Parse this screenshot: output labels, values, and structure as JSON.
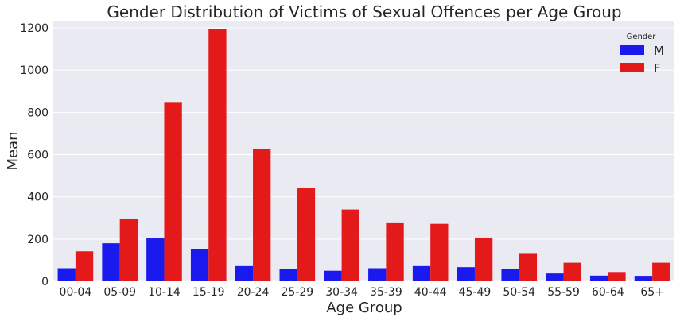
{
  "chart_data": {
    "type": "bar",
    "title": "Gender Distribution of Victims of Sexual Offences per Age Group",
    "xlabel": "Age Group",
    "ylabel": "Mean",
    "ylim": [
      0,
      1230
    ],
    "yticks": [
      0,
      200,
      400,
      600,
      800,
      1000,
      1200
    ],
    "grid": true,
    "legend": {
      "title": "Gender",
      "placement": "top-right"
    },
    "categories": [
      "00-04",
      "05-09",
      "10-14",
      "15-19",
      "20-24",
      "25-29",
      "30-34",
      "35-39",
      "40-44",
      "45-49",
      "50-54",
      "55-59",
      "60-64",
      "65+"
    ],
    "series": [
      {
        "name": "M",
        "color": "#1a1aee",
        "values": [
          62,
          180,
          203,
          152,
          72,
          57,
          50,
          62,
          72,
          67,
          57,
          37,
          27,
          26
        ]
      },
      {
        "name": "F",
        "color": "#e41a1a",
        "values": [
          142,
          295,
          845,
          1193,
          625,
          440,
          340,
          275,
          272,
          207,
          130,
          88,
          44,
          88
        ]
      }
    ]
  }
}
